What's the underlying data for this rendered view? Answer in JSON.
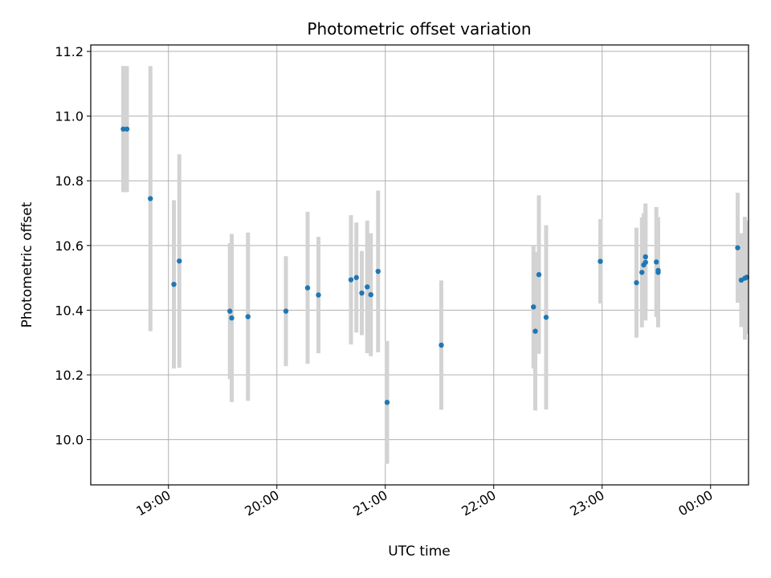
{
  "chart_data": {
    "type": "scatter",
    "title": "Photometric offset variation",
    "xlabel": "UTC time",
    "ylabel": "Photometric offset",
    "ylim": [
      9.86,
      11.22
    ],
    "xlim": [
      "18:17",
      "00:21"
    ],
    "grid": true,
    "x_tick_labels": [
      "19:00",
      "20:00",
      "21:00",
      "22:00",
      "23:00",
      "00:00"
    ],
    "y_tick_labels": [
      "10.0",
      "10.2",
      "10.4",
      "10.6",
      "10.8",
      "11.0",
      "11.2"
    ],
    "x_tick_times": [
      "19:00",
      "20:00",
      "21:00",
      "22:00",
      "23:00",
      "00:00"
    ],
    "y_tick_values": [
      10.0,
      10.2,
      10.4,
      10.6,
      10.8,
      11.0,
      11.2
    ],
    "point_color": "#1f77b4",
    "errorbar_color": "#d3d3d3",
    "points": [
      {
        "time": "18:35",
        "y": 10.96,
        "err": 0.195
      },
      {
        "time": "18:37",
        "y": 10.96,
        "err": 0.195
      },
      {
        "time": "18:50",
        "y": 10.745,
        "err": 0.41
      },
      {
        "time": "19:03",
        "y": 10.48,
        "err": 0.26
      },
      {
        "time": "19:06",
        "y": 10.552,
        "err": 0.33
      },
      {
        "time": "19:34",
        "y": 10.397,
        "err": 0.21
      },
      {
        "time": "19:35",
        "y": 10.376,
        "err": 0.26
      },
      {
        "time": "19:44",
        "y": 10.38,
        "err": 0.26
      },
      {
        "time": "20:05",
        "y": 10.397,
        "err": 0.17
      },
      {
        "time": "20:17",
        "y": 10.469,
        "err": 0.235
      },
      {
        "time": "20:23",
        "y": 10.447,
        "err": 0.18
      },
      {
        "time": "20:41",
        "y": 10.494,
        "err": 0.2
      },
      {
        "time": "20:44",
        "y": 10.501,
        "err": 0.17
      },
      {
        "time": "20:47",
        "y": 10.453,
        "err": 0.13
      },
      {
        "time": "20:50",
        "y": 10.472,
        "err": 0.205
      },
      {
        "time": "20:52",
        "y": 10.448,
        "err": 0.19
      },
      {
        "time": "20:56",
        "y": 10.52,
        "err": 0.25
      },
      {
        "time": "21:01",
        "y": 10.115,
        "err": 0.19
      },
      {
        "time": "21:31",
        "y": 10.292,
        "err": 0.2
      },
      {
        "time": "22:22",
        "y": 10.41,
        "err": 0.19
      },
      {
        "time": "22:23",
        "y": 10.335,
        "err": 0.245
      },
      {
        "time": "22:25",
        "y": 10.51,
        "err": 0.245
      },
      {
        "time": "22:29",
        "y": 10.378,
        "err": 0.285
      },
      {
        "time": "22:59",
        "y": 10.551,
        "err": 0.13
      },
      {
        "time": "23:19",
        "y": 10.485,
        "err": 0.17
      },
      {
        "time": "23:22",
        "y": 10.517,
        "err": 0.17
      },
      {
        "time": "23:23",
        "y": 10.54,
        "err": 0.16
      },
      {
        "time": "23:24",
        "y": 10.565,
        "err": 0.165
      },
      {
        "time": "23:24",
        "y": 10.548,
        "err": 0.18
      },
      {
        "time": "23:30",
        "y": 10.549,
        "err": 0.17
      },
      {
        "time": "23:31",
        "y": 10.517,
        "err": 0.17
      },
      {
        "time": "23:31",
        "y": 10.523,
        "err": 0.165
      },
      {
        "time": "00:15",
        "y": 10.593,
        "err": 0.17
      },
      {
        "time": "00:17",
        "y": 10.493,
        "err": 0.145
      },
      {
        "time": "00:19",
        "y": 10.499,
        "err": 0.19
      },
      {
        "time": "00:20",
        "y": 10.502,
        "err": 0.175
      }
    ]
  }
}
